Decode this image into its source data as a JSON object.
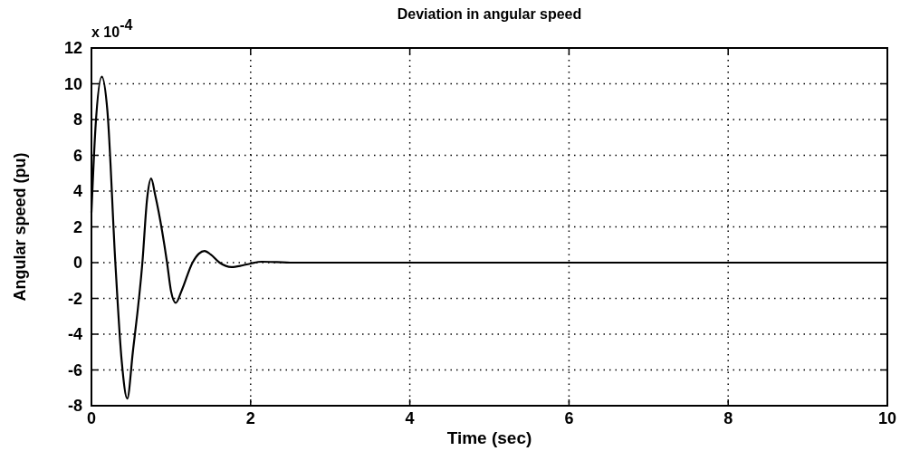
{
  "chart_data": {
    "type": "line",
    "title": "Deviation in angular speed",
    "xlabel": "Time (sec)",
    "ylabel": "Angular speed (pu)",
    "annotations": [
      "x 10$^{-4}$"
    ],
    "x": [
      0,
      0.05,
      0.13,
      0.2,
      0.3,
      0.38,
      0.45,
      0.52,
      0.64,
      0.7,
      0.75,
      0.8,
      0.95,
      1.0,
      1.06,
      1.13,
      1.27,
      1.35,
      1.42,
      1.5,
      1.61,
      1.76,
      1.9,
      2.0,
      2.14,
      2.33,
      2.5,
      10
    ],
    "series": [
      {
        "color": "#000000",
        "values": [
          2.8,
          7.5,
          10.4,
          8.5,
          0,
          -5.5,
          -7.6,
          -5,
          0,
          3.6,
          4.7,
          3.8,
          0,
          -1.6,
          -2.25,
          -1.6,
          0,
          0.5,
          0.65,
          0.45,
          0,
          -0.25,
          -0.15,
          -0.05,
          0.05,
          0.03,
          0,
          0
        ]
      }
    ],
    "xlim": [
      0,
      10
    ],
    "xticks": [
      0,
      2,
      4,
      6,
      8,
      10
    ],
    "ylim": [
      -8,
      12
    ],
    "yticks": [
      -8,
      -6,
      -4,
      -2,
      0,
      2,
      4,
      6,
      8,
      10,
      12
    ],
    "grid": true,
    "line_style": "solid"
  }
}
